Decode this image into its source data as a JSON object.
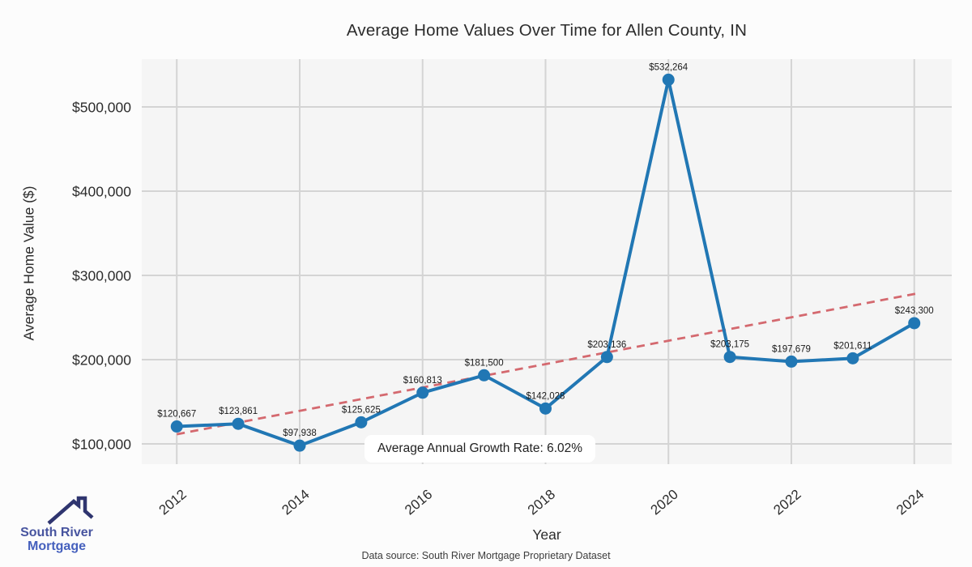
{
  "title": "Average Home Values Over Time for Allen County, IN",
  "chart_data": {
    "type": "line",
    "x": [
      2012,
      2013,
      2014,
      2015,
      2016,
      2017,
      2018,
      2019,
      2020,
      2021,
      2022,
      2023,
      2024
    ],
    "series": [
      {
        "name": "Average Home Value",
        "values": [
          120667,
          123861,
          97938,
          125625,
          160813,
          181500,
          142028,
          203136,
          532264,
          203175,
          197679,
          201611,
          243300
        ],
        "color": "#2177b4"
      }
    ],
    "point_labels": [
      "$120,667",
      "$123,861",
      "$97,938",
      "$125,625",
      "$160,813",
      "$181,500",
      "$142,028",
      "$203,136",
      "$532,264",
      "$203,175",
      "$197,679",
      "$201,611",
      "$243,300"
    ],
    "xlabel": "Year",
    "ylabel": "Average Home Value ($)",
    "xticks": [
      2012,
      2014,
      2016,
      2018,
      2020,
      2022,
      2024
    ],
    "yticks": [
      100000,
      200000,
      300000,
      400000,
      500000
    ],
    "ytick_labels": [
      "$100,000",
      "$200,000",
      "$300,000",
      "$400,000",
      "$500,000"
    ],
    "xlim": [
      2011.43,
      2024.61
    ],
    "ylim": [
      76000,
      556700
    ],
    "grid": true,
    "legend": "none",
    "trendline": {
      "style": "dashed",
      "color": "#d4696f",
      "start_year": 2012,
      "start_value": 111500,
      "end_year": 2024,
      "end_value": 278000
    },
    "annotation": {
      "text": "Average Annual Growth Rate: 6.02%"
    }
  },
  "branding": {
    "logo_line1": "South River",
    "logo_line2": "Mortgage",
    "roof_color": "#2f356f"
  },
  "footer": {
    "source_text": "Data source: South River Mortgage Proprietary Dataset"
  },
  "colors": {
    "plot_background": "#f5f5f5",
    "gridline": "#d4d4d4",
    "series_blue": "#2177b4",
    "trend_red": "#d4696f"
  }
}
